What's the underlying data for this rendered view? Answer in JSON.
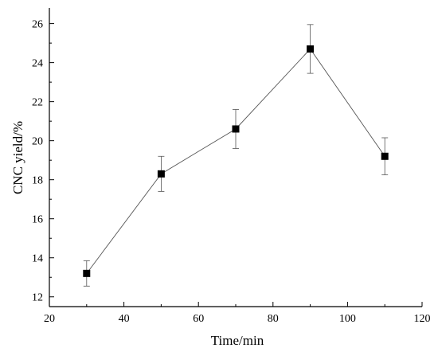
{
  "chart_data": {
    "type": "line",
    "xlabel": "Time/min",
    "ylabel": "CNC yield/%",
    "xlim": [
      20,
      120
    ],
    "ylim": [
      11.5,
      26.8
    ],
    "xticks": [
      20,
      40,
      60,
      80,
      100,
      120
    ],
    "yticks": [
      12,
      14,
      16,
      18,
      20,
      22,
      24,
      26
    ],
    "grid": false,
    "legend": "none",
    "marker": "square",
    "series": [
      {
        "x": [
          30,
          50,
          70,
          90,
          110
        ],
        "y": [
          13.2,
          18.3,
          20.6,
          24.7,
          19.2
        ],
        "error": [
          0.65,
          0.9,
          1.0,
          1.25,
          0.95
        ]
      }
    ]
  }
}
